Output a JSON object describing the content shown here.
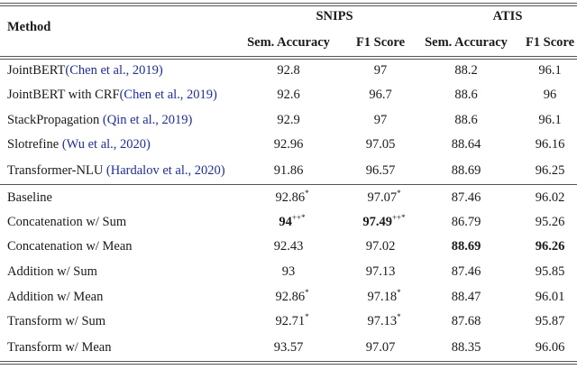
{
  "header": {
    "method": "Method",
    "groups": [
      "SNIPS",
      "ATIS"
    ],
    "columns": [
      "Sem. Accuracy",
      "F1 Score",
      "Sem. Accuracy",
      "F1 Score"
    ]
  },
  "prior_rows": [
    {
      "method": "JointBERT",
      "citation": "(Chen et al., 2019)",
      "values": [
        "92.8",
        "97",
        "88.2",
        "96.1"
      ]
    },
    {
      "method": "JointBERT with CRF",
      "citation": "(Chen et al., 2019)",
      "values": [
        "92.6",
        "96.7",
        "88.6",
        "96"
      ]
    },
    {
      "method": "StackPropagation ",
      "citation": "(Qin et al., 2019)",
      "values": [
        "92.9",
        "97",
        "88.6",
        "96.1"
      ]
    },
    {
      "method": "Slotrefine ",
      "citation": "(Wu et al., 2020)",
      "values": [
        "92.96",
        "97.05",
        "88.64",
        "96.16"
      ]
    },
    {
      "method": "Transformer-NLU ",
      "citation": "(Hardalov et al., 2020)",
      "values": [
        "91.86",
        "96.57",
        "88.69",
        "96.25"
      ]
    }
  ],
  "our_rows": [
    {
      "method": "Baseline",
      "values": [
        "92.86",
        "97.07",
        "87.46",
        "96.02"
      ],
      "marks": [
        "*",
        "*",
        "",
        ""
      ],
      "bold": [
        false,
        false,
        false,
        false
      ]
    },
    {
      "method": "Concatenation w/ Sum",
      "values": [
        "94",
        "97.49",
        "86.79",
        "95.26"
      ],
      "marks": [
        "++*",
        "++*",
        "",
        ""
      ],
      "bold": [
        true,
        true,
        false,
        false
      ]
    },
    {
      "method": "Concatenation w/ Mean",
      "values": [
        "92.43",
        "97.02",
        "88.69",
        "96.26"
      ],
      "marks": [
        "",
        "",
        "",
        ""
      ],
      "bold": [
        false,
        false,
        true,
        true
      ]
    },
    {
      "method": "Addition w/ Sum",
      "values": [
        "93",
        "97.13",
        "87.46",
        "95.85"
      ],
      "marks": [
        "",
        "",
        "",
        ""
      ],
      "bold": [
        false,
        false,
        false,
        false
      ]
    },
    {
      "method": "Addition w/ Mean",
      "values": [
        "92.86",
        "97.18",
        "88.47",
        "96.01"
      ],
      "marks": [
        "*",
        "*",
        "",
        ""
      ],
      "bold": [
        false,
        false,
        false,
        false
      ]
    },
    {
      "method": "Transform w/ Sum",
      "values": [
        "92.71",
        "97.13",
        "87.68",
        "95.87"
      ],
      "marks": [
        "*",
        "*",
        "",
        ""
      ],
      "bold": [
        false,
        false,
        false,
        false
      ]
    },
    {
      "method": "Transform w/ Mean",
      "values": [
        "93.57",
        "97.07",
        "88.35",
        "96.06"
      ],
      "marks": [
        "",
        "",
        "",
        ""
      ],
      "bold": [
        false,
        false,
        false,
        false
      ]
    }
  ],
  "colors": {
    "citation": "#1f2d9c",
    "rule": "#555555"
  }
}
